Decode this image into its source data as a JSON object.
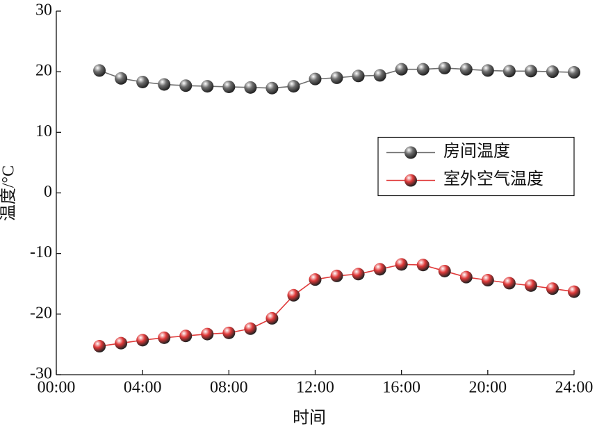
{
  "chart_data": {
    "type": "line",
    "xlabel": "时间",
    "ylabel": "温度/°C",
    "x": [
      2,
      3,
      4,
      5,
      6,
      7,
      8,
      9,
      10,
      11,
      12,
      13,
      14,
      15,
      16,
      17,
      18,
      19,
      20,
      21,
      22,
      23,
      24
    ],
    "series": [
      {
        "name": "房间温度",
        "color": "#6e6e6e",
        "values": [
          20.2,
          18.9,
          18.3,
          17.9,
          17.7,
          17.6,
          17.5,
          17.4,
          17.3,
          17.6,
          18.8,
          19.0,
          19.3,
          19.4,
          20.4,
          20.4,
          20.6,
          20.4,
          20.2,
          20.1,
          20.1,
          20.0,
          19.9
        ]
      },
      {
        "name": "室外空气温度",
        "color": "#e03a3a",
        "values": [
          -25.3,
          -24.8,
          -24.3,
          -23.9,
          -23.6,
          -23.3,
          -23.1,
          -22.4,
          -20.7,
          -16.9,
          -14.3,
          -13.7,
          -13.4,
          -12.6,
          -11.8,
          -11.9,
          -12.9,
          -13.9,
          -14.4,
          -14.9,
          -15.3,
          -15.8,
          -16.3
        ]
      }
    ],
    "xlim": [
      0,
      24
    ],
    "xticks": [
      {
        "value": 0,
        "label": "00:00"
      },
      {
        "value": 4,
        "label": "04:00"
      },
      {
        "value": 8,
        "label": "08:00"
      },
      {
        "value": 12,
        "label": "12:00"
      },
      {
        "value": 16,
        "label": "16:00"
      },
      {
        "value": 20,
        "label": "20:00"
      },
      {
        "value": 24,
        "label": "24:00"
      }
    ],
    "ylim": [
      -30,
      30
    ],
    "yticks": [
      -30,
      -20,
      -10,
      0,
      10,
      20,
      30
    ],
    "legend": "center right",
    "grid": false
  }
}
